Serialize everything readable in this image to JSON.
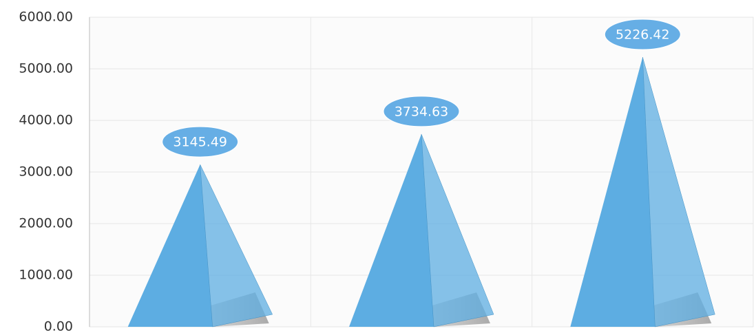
{
  "chart_data": {
    "type": "pyramid",
    "categories": [
      null,
      null,
      null
    ],
    "values": [
      3145.49,
      3734.63,
      5226.42
    ],
    "color": "#5dade2",
    "ylim": [
      0,
      6000
    ],
    "yticks": [
      {
        "value": 0,
        "label": "0.00"
      },
      {
        "value": 1000,
        "label": "1000.00"
      },
      {
        "value": 2000,
        "label": "2000.00"
      },
      {
        "value": 3000,
        "label": "3000.00"
      },
      {
        "value": 4000,
        "label": "4000.00"
      },
      {
        "value": 5000,
        "label": "5000.00"
      },
      {
        "value": 6000,
        "label": "6000.00"
      }
    ],
    "grid": true
  }
}
